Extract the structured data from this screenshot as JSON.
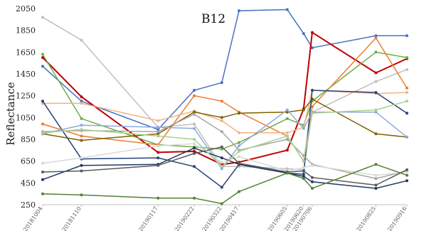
{
  "chart_data": {
    "type": "line",
    "title": "B12",
    "xlabel": "",
    "ylabel": "Reflectance",
    "ylim": [
      250,
      2050
    ],
    "yticks": [
      250,
      450,
      650,
      850,
      1050,
      1250,
      1450,
      1650,
      1850,
      2050
    ],
    "x_tick_labels": [
      "20181004",
      "20181110",
      "20190117",
      "20190222",
      "20190322",
      "20190417",
      "20190605",
      "20190620",
      "20190706",
      "20190825",
      "20190916"
    ],
    "x_positions": [
      0,
      4.5,
      13.4,
      17.6,
      20.8,
      22.8,
      28.4,
      30.3,
      31.3,
      38.7,
      42.3
    ],
    "grid": false,
    "legend": "none",
    "series": [
      {
        "color": "#4472c4",
        "values": [
          1520,
          1200,
          940,
          1300,
          1370,
          2030,
          2040,
          1820,
          1690,
          1800,
          1800
        ]
      },
      {
        "color": "#c00000",
        "values": [
          1600,
          1240,
          730,
          740,
          620,
          640,
          750,
          1130,
          1830,
          1460,
          1590
        ]
      },
      {
        "color": "#bfbfbf",
        "values": [
          1970,
          1760,
          960,
          990,
          600,
          600,
          580,
          570,
          1100,
          1380,
          1490
        ]
      },
      {
        "color": "#70ad47",
        "values": [
          1630,
          1040,
          800,
          780,
          760,
          820,
          1040,
          980,
          1200,
          1650,
          1600
        ]
      },
      {
        "color": "#ed7d31",
        "values": [
          990,
          880,
          800,
          1250,
          1200,
          1100,
          880,
          650,
          1150,
          1780,
          1320
        ]
      },
      {
        "color": "#f4b183",
        "values": [
          1180,
          1180,
          1020,
          1110,
          1020,
          910,
          910,
          960,
          1300,
          1270,
          1280
        ]
      },
      {
        "color": "#7f6000",
        "values": [
          900,
          840,
          900,
          1100,
          1050,
          1090,
          1100,
          1120,
          1220,
          900,
          870
        ]
      },
      {
        "color": "#264478",
        "values": [
          1200,
          670,
          680,
          600,
          410,
          620,
          540,
          530,
          1300,
          1280,
          1090
        ]
      },
      {
        "color": "#8faadc",
        "values": [
          900,
          980,
          960,
          950,
          580,
          790,
          1120,
          950,
          1100,
          1100,
          870
        ]
      },
      {
        "color": "#a5a5a5",
        "values": [
          920,
          930,
          920,
          1080,
          920,
          750,
          850,
          700,
          620,
          490,
          560
        ]
      },
      {
        "color": "#d9d9d9",
        "values": [
          630,
          680,
          790,
          810,
          640,
          690,
          560,
          590,
          610,
          520,
          550
        ]
      },
      {
        "color": "#1f3864",
        "values": [
          480,
          610,
          620,
          770,
          680,
          620,
          540,
          510,
          460,
          400,
          470
        ]
      },
      {
        "color": "#595959",
        "values": [
          550,
          560,
          610,
          720,
          780,
          630,
          550,
          560,
          500,
          430,
          570
        ]
      },
      {
        "color": "#548235",
        "values": [
          350,
          340,
          310,
          310,
          260,
          370,
          540,
          490,
          400,
          620,
          520
        ]
      },
      {
        "color": "#a9d18e",
        "values": [
          910,
          940,
          880,
          850,
          600,
          740,
          880,
          650,
          1090,
          1120,
          1200
        ]
      }
    ]
  }
}
